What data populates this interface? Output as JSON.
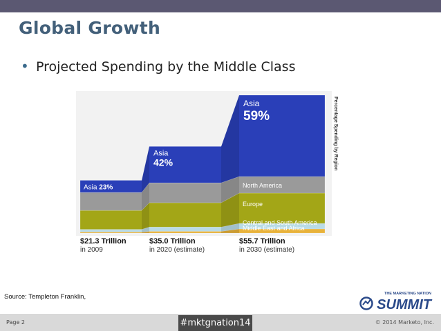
{
  "slide": {
    "title": "Global Growth",
    "bullet": "Projected Spending by the Middle Class",
    "source": "Source: Templeton Franklin,"
  },
  "footer": {
    "page": "Page 2",
    "hashtag": "#mktgnation14",
    "copyright": "© 2014 Marketo, Inc."
  },
  "logo": {
    "line1": "THE MARKETING NATION",
    "line2": "SUMMIT"
  },
  "chart_data": {
    "type": "area",
    "vertical_label": "Percentage Spending by Region",
    "periods": [
      {
        "total": "$21.3 Trillion",
        "year": "in 2009",
        "value": 21.3
      },
      {
        "total": "$35.0 Trillion",
        "year": "in 2020 (estimate)",
        "value": 35.0
      },
      {
        "total": "$55.7 Trillion",
        "year": "in 2030 (estimate)",
        "value": 55.7
      }
    ],
    "series": [
      {
        "name": "Middle East and Africa",
        "color": "#e8b23a",
        "values": [
          2,
          2,
          3
        ]
      },
      {
        "name": "Central and South America",
        "color": "#b9dbe6",
        "values": [
          5,
          5,
          4
        ]
      },
      {
        "name": "Europe",
        "color": "#a3a617",
        "values": [
          36,
          28,
          22
        ]
      },
      {
        "name": "North America",
        "color": "#9a9a9a",
        "values": [
          34,
          23,
          12
        ]
      },
      {
        "name": "Asia",
        "color": "#2a3fb8",
        "values": [
          23,
          42,
          59
        ]
      }
    ],
    "asia_labels": [
      {
        "name": "Asia",
        "pct": "23%"
      },
      {
        "name": "Asia",
        "pct": "42%"
      },
      {
        "name": "Asia",
        "pct": "59%"
      }
    ],
    "band_labels_2030": {
      "north_america": "North America",
      "europe": "Europe",
      "central_south_america": "Central and South America",
      "middle_east_africa": "Middle East and Africa"
    }
  }
}
